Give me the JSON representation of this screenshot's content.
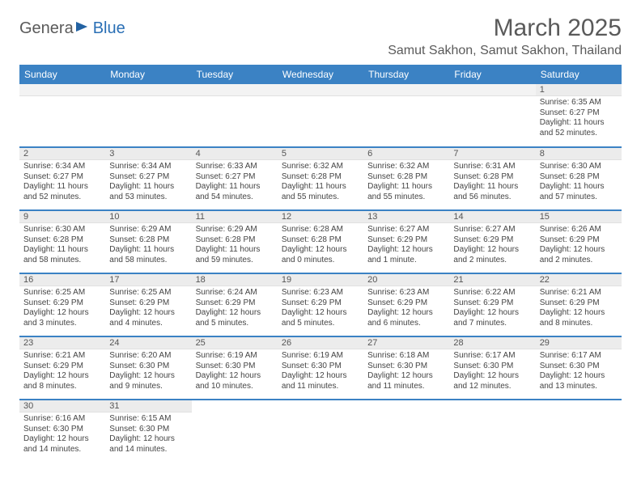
{
  "logo": {
    "part1": "Genera",
    "part2": "Blue"
  },
  "title": "March 2025",
  "location": "Samut Sakhon, Samut Sakhon, Thailand",
  "colors": {
    "header_bg": "#3b82c4",
    "header_text": "#ffffff",
    "daynum_bg": "#ececec",
    "row_border": "#3b82c4",
    "text": "#444444",
    "title_text": "#5a5a5a",
    "logo_blue": "#2a6fb5"
  },
  "day_headers": [
    "Sunday",
    "Monday",
    "Tuesday",
    "Wednesday",
    "Thursday",
    "Friday",
    "Saturday"
  ],
  "weeks": [
    [
      null,
      null,
      null,
      null,
      null,
      null,
      {
        "n": "1",
        "sr": "6:35 AM",
        "ss": "6:27 PM",
        "dl": "11 hours and 52 minutes."
      }
    ],
    [
      {
        "n": "2",
        "sr": "6:34 AM",
        "ss": "6:27 PM",
        "dl": "11 hours and 52 minutes."
      },
      {
        "n": "3",
        "sr": "6:34 AM",
        "ss": "6:27 PM",
        "dl": "11 hours and 53 minutes."
      },
      {
        "n": "4",
        "sr": "6:33 AM",
        "ss": "6:27 PM",
        "dl": "11 hours and 54 minutes."
      },
      {
        "n": "5",
        "sr": "6:32 AM",
        "ss": "6:28 PM",
        "dl": "11 hours and 55 minutes."
      },
      {
        "n": "6",
        "sr": "6:32 AM",
        "ss": "6:28 PM",
        "dl": "11 hours and 55 minutes."
      },
      {
        "n": "7",
        "sr": "6:31 AM",
        "ss": "6:28 PM",
        "dl": "11 hours and 56 minutes."
      },
      {
        "n": "8",
        "sr": "6:30 AM",
        "ss": "6:28 PM",
        "dl": "11 hours and 57 minutes."
      }
    ],
    [
      {
        "n": "9",
        "sr": "6:30 AM",
        "ss": "6:28 PM",
        "dl": "11 hours and 58 minutes."
      },
      {
        "n": "10",
        "sr": "6:29 AM",
        "ss": "6:28 PM",
        "dl": "11 hours and 58 minutes."
      },
      {
        "n": "11",
        "sr": "6:29 AM",
        "ss": "6:28 PM",
        "dl": "11 hours and 59 minutes."
      },
      {
        "n": "12",
        "sr": "6:28 AM",
        "ss": "6:28 PM",
        "dl": "12 hours and 0 minutes."
      },
      {
        "n": "13",
        "sr": "6:27 AM",
        "ss": "6:29 PM",
        "dl": "12 hours and 1 minute."
      },
      {
        "n": "14",
        "sr": "6:27 AM",
        "ss": "6:29 PM",
        "dl": "12 hours and 2 minutes."
      },
      {
        "n": "15",
        "sr": "6:26 AM",
        "ss": "6:29 PM",
        "dl": "12 hours and 2 minutes."
      }
    ],
    [
      {
        "n": "16",
        "sr": "6:25 AM",
        "ss": "6:29 PM",
        "dl": "12 hours and 3 minutes."
      },
      {
        "n": "17",
        "sr": "6:25 AM",
        "ss": "6:29 PM",
        "dl": "12 hours and 4 minutes."
      },
      {
        "n": "18",
        "sr": "6:24 AM",
        "ss": "6:29 PM",
        "dl": "12 hours and 5 minutes."
      },
      {
        "n": "19",
        "sr": "6:23 AM",
        "ss": "6:29 PM",
        "dl": "12 hours and 5 minutes."
      },
      {
        "n": "20",
        "sr": "6:23 AM",
        "ss": "6:29 PM",
        "dl": "12 hours and 6 minutes."
      },
      {
        "n": "21",
        "sr": "6:22 AM",
        "ss": "6:29 PM",
        "dl": "12 hours and 7 minutes."
      },
      {
        "n": "22",
        "sr": "6:21 AM",
        "ss": "6:29 PM",
        "dl": "12 hours and 8 minutes."
      }
    ],
    [
      {
        "n": "23",
        "sr": "6:21 AM",
        "ss": "6:29 PM",
        "dl": "12 hours and 8 minutes."
      },
      {
        "n": "24",
        "sr": "6:20 AM",
        "ss": "6:30 PM",
        "dl": "12 hours and 9 minutes."
      },
      {
        "n": "25",
        "sr": "6:19 AM",
        "ss": "6:30 PM",
        "dl": "12 hours and 10 minutes."
      },
      {
        "n": "26",
        "sr": "6:19 AM",
        "ss": "6:30 PM",
        "dl": "12 hours and 11 minutes."
      },
      {
        "n": "27",
        "sr": "6:18 AM",
        "ss": "6:30 PM",
        "dl": "12 hours and 11 minutes."
      },
      {
        "n": "28",
        "sr": "6:17 AM",
        "ss": "6:30 PM",
        "dl": "12 hours and 12 minutes."
      },
      {
        "n": "29",
        "sr": "6:17 AM",
        "ss": "6:30 PM",
        "dl": "12 hours and 13 minutes."
      }
    ],
    [
      {
        "n": "30",
        "sr": "6:16 AM",
        "ss": "6:30 PM",
        "dl": "12 hours and 14 minutes."
      },
      {
        "n": "31",
        "sr": "6:15 AM",
        "ss": "6:30 PM",
        "dl": "12 hours and 14 minutes."
      },
      null,
      null,
      null,
      null,
      null
    ]
  ],
  "labels": {
    "sunrise": "Sunrise: ",
    "sunset": "Sunset: ",
    "daylight": "Daylight: "
  }
}
